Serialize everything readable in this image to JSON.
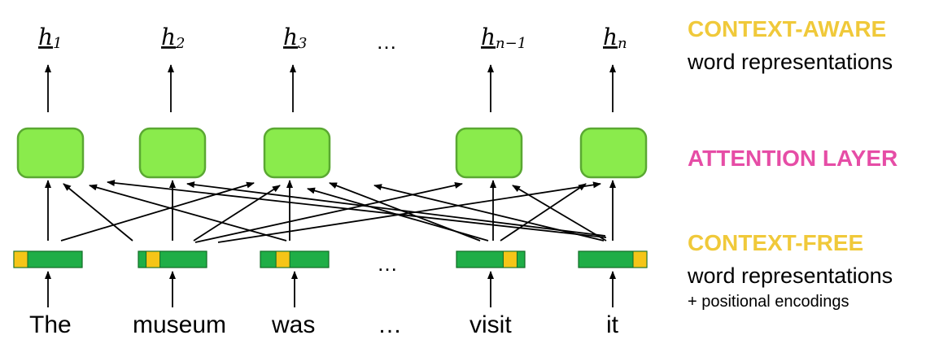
{
  "outputs": [
    {
      "base": "h",
      "sub": "1"
    },
    {
      "base": "h",
      "sub": "2"
    },
    {
      "base": "h",
      "sub": "3"
    },
    {
      "base": "h",
      "sub": "n−1"
    },
    {
      "base": "h",
      "sub": "n"
    }
  ],
  "ellipsis": "…",
  "words": [
    "The",
    "museum",
    "was",
    "…",
    "visit",
    "it"
  ],
  "right_labels": {
    "context_aware": "CONTEXT-AWARE",
    "aware_sub": "word representations",
    "attention": "ATTENTION LAYER",
    "context_free": "CONTEXT-FREE",
    "free_sub": "word representations",
    "positional": "+ positional encodings"
  },
  "colors": {
    "box_fill": "#8aeb4c",
    "box_stroke": "#5aa832",
    "embed_green": "#1fae47",
    "embed_yellow": "#f5c518",
    "embed_stroke": "#106b24",
    "heading_yellow": "#f0c93a",
    "heading_pink": "#e64da6",
    "text": "#000000"
  }
}
